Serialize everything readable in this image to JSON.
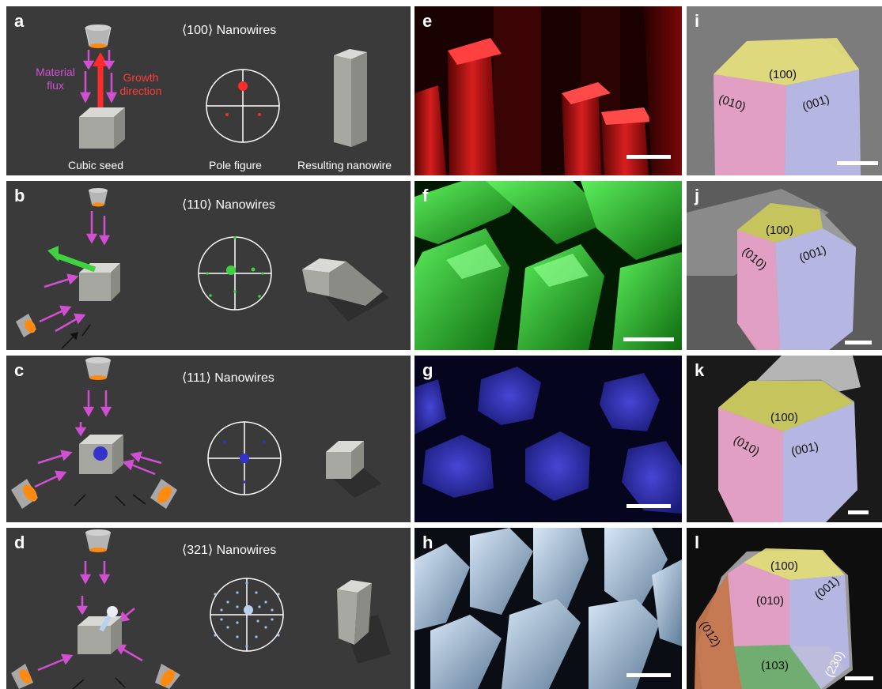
{
  "panels": {
    "a": {
      "label": "a",
      "title": "⟨100⟩ Nanowires",
      "caption_seed": "Cubic seed",
      "caption_pole": "Pole figure",
      "caption_wire": "Resulting nanowire",
      "flux_label": "Material\nflux",
      "growth_label": "Growth\ndirection"
    },
    "b": {
      "label": "b",
      "title": "⟨110⟩ Nanowires"
    },
    "c": {
      "label": "c",
      "title": "⟨111⟩ Nanowires"
    },
    "d": {
      "label": "d",
      "title": "⟨321⟩ Nanowires"
    },
    "e": {
      "label": "e"
    },
    "f": {
      "label": "f"
    },
    "g": {
      "label": "g"
    },
    "h": {
      "label": "h"
    },
    "i": {
      "label": "i",
      "f1": "(100)",
      "f2": "(010)",
      "f3": "(001)"
    },
    "j": {
      "label": "j",
      "f1": "(100)",
      "f2": "(010)",
      "f3": "(001)"
    },
    "k": {
      "label": "k",
      "f1": "(100)",
      "f2": "(010)",
      "f3": "(001)"
    },
    "l": {
      "label": "l",
      "f1": "(100)",
      "f2": "(010)",
      "f3": "(001)",
      "f4": "(012)",
      "f5": "(103)",
      "f6": "(230)"
    }
  },
  "colors": {
    "panel_bg": "#3a3a3a",
    "flux": "#d14fd1",
    "growth_100": "#ff2a2a",
    "growth_110": "#3fd13f",
    "growth_111": "#3333cc",
    "growth_321": "#b9d3ee",
    "facet_100": "#e6e07a",
    "facet_010": "#e9a0c8",
    "facet_001": "#b9b9ea",
    "facet_012": "#c87850",
    "facet_103": "#6fae6f"
  }
}
